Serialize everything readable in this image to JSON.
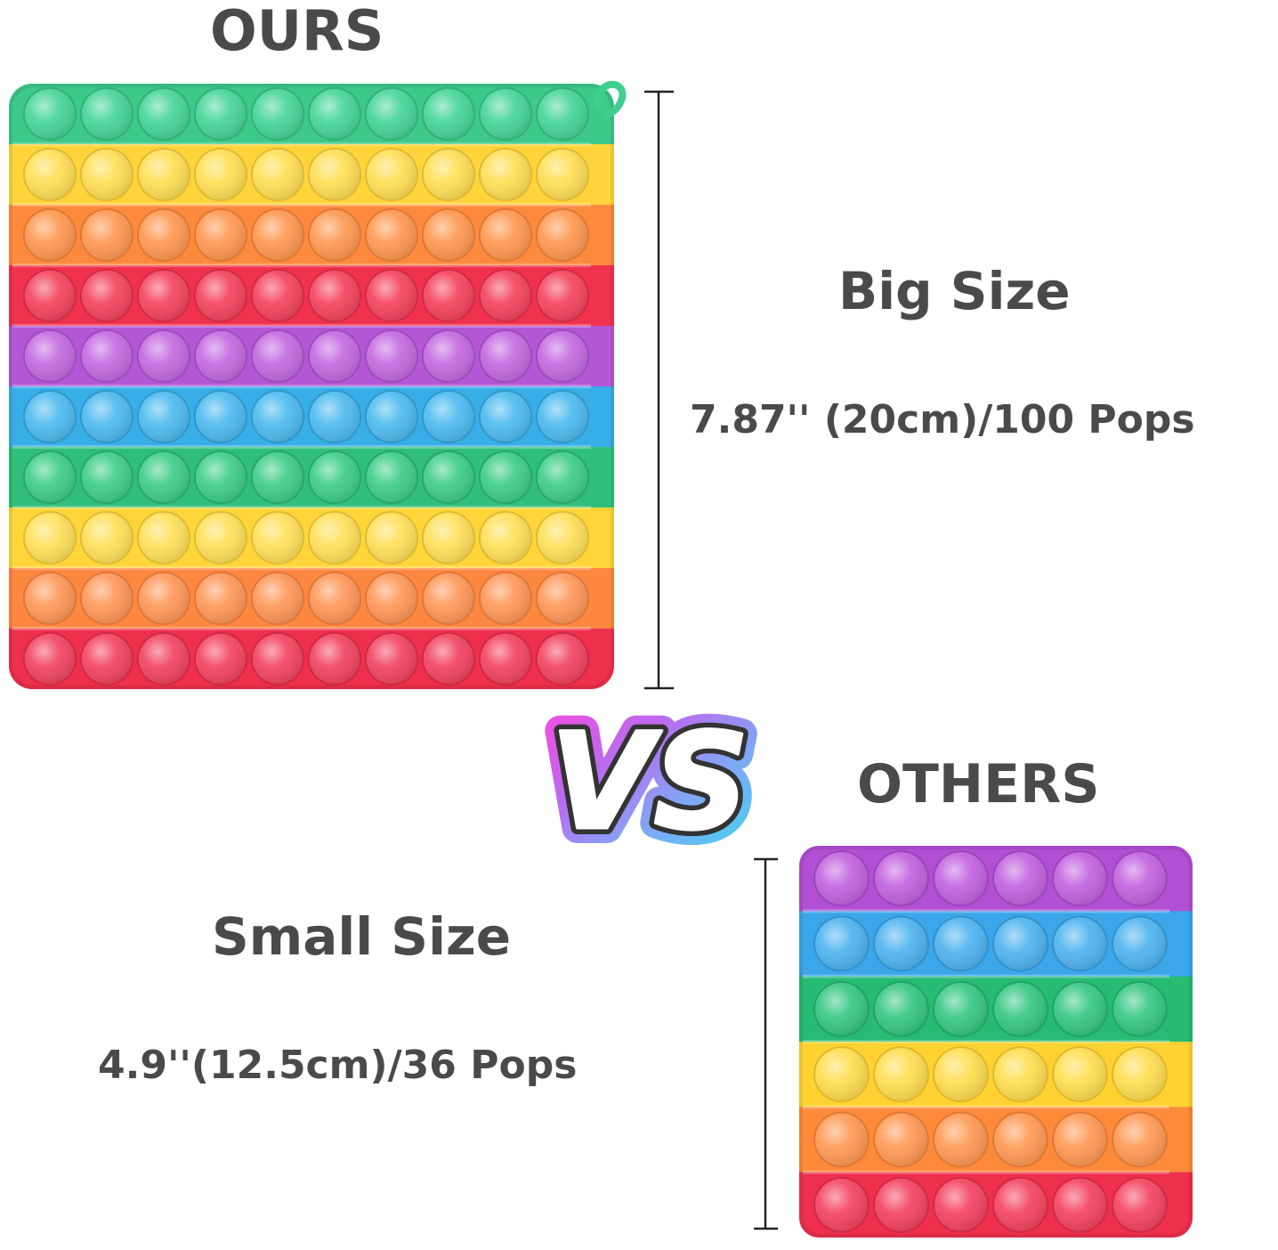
{
  "ours": {
    "title": "OURS",
    "size_label": "Big Size",
    "spec": "7.87'' (20cm)/100 Pops",
    "grid": {
      "rows": 10,
      "cols": 10
    },
    "row_colors": [
      "#3cc98a",
      "#ffd43b",
      "#ff8a3d",
      "#f0324f",
      "#b457d6",
      "#38aee8",
      "#2fbf7a",
      "#ffd53a",
      "#ff8840",
      "#ee2f4d"
    ],
    "pop_colors": [
      "#47d599",
      "#ffdf55",
      "#ff9952",
      "#f4445f",
      "#c46ae0",
      "#4ebbef",
      "#3fcd8a",
      "#ffe05a",
      "#ff985a",
      "#f24461"
    ]
  },
  "vs_text": "VS",
  "others": {
    "title": "OTHERS",
    "size_label": "Small Size",
    "spec": "4.9''(12.5cm)/36 Pops",
    "grid": {
      "rows": 6,
      "cols": 6
    },
    "row_colors": [
      "#b24fd4",
      "#3ba6ea",
      "#27bb74",
      "#ffd232",
      "#ff8a3a",
      "#ef2f4e"
    ],
    "pop_colors": [
      "#c263df",
      "#4fb4ef",
      "#37c785",
      "#ffde50",
      "#ff9a55",
      "#f44462"
    ]
  },
  "colors": {
    "text": "#4a4a4a",
    "bracket": "#222222"
  }
}
